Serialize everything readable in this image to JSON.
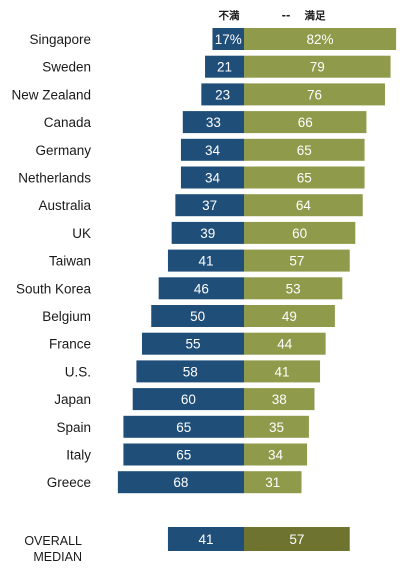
{
  "chart_data": {
    "type": "bar",
    "orientation": "horizontal-diverging",
    "legend": {
      "dissatisfied": "不満",
      "separator": "--",
      "satisfied": "満足"
    },
    "categories": [
      "Singapore",
      "Sweden",
      "New Zealand",
      "Canada",
      "Germany",
      "Netherlands",
      "Australia",
      "UK",
      "Taiwan",
      "South Korea",
      "Belgium",
      "France",
      "U.S.",
      "Japan",
      "Spain",
      "Italy",
      "Greece"
    ],
    "series": [
      {
        "name": "不満",
        "values": [
          17,
          21,
          23,
          33,
          34,
          34,
          37,
          39,
          41,
          46,
          50,
          55,
          58,
          60,
          65,
          65,
          68
        ],
        "labels": [
          "17%",
          "21",
          "23",
          "33",
          "34",
          "34",
          "37",
          "39",
          "41",
          "46",
          "50",
          "55",
          "58",
          "60",
          "65",
          "65",
          "68"
        ],
        "color": "#1f4e79"
      },
      {
        "name": "満足",
        "values": [
          82,
          79,
          76,
          66,
          65,
          65,
          64,
          60,
          57,
          53,
          49,
          44,
          41,
          38,
          35,
          34,
          31
        ],
        "labels": [
          "82%",
          "79",
          "76",
          "66",
          "65",
          "65",
          "64",
          "60",
          "57",
          "53",
          "49",
          "44",
          "41",
          "38",
          "35",
          "34",
          "31"
        ],
        "color": "#8f9a4a"
      }
    ],
    "overall": {
      "label_line1": "OVERALL",
      "label_line2": "MEDIAN",
      "dissatisfied": 41,
      "satisfied": 57,
      "dissatisfied_label": "41",
      "satisfied_label": "57",
      "dissatisfied_color": "#1f4e79",
      "satisfied_color": "#6e7430"
    }
  }
}
